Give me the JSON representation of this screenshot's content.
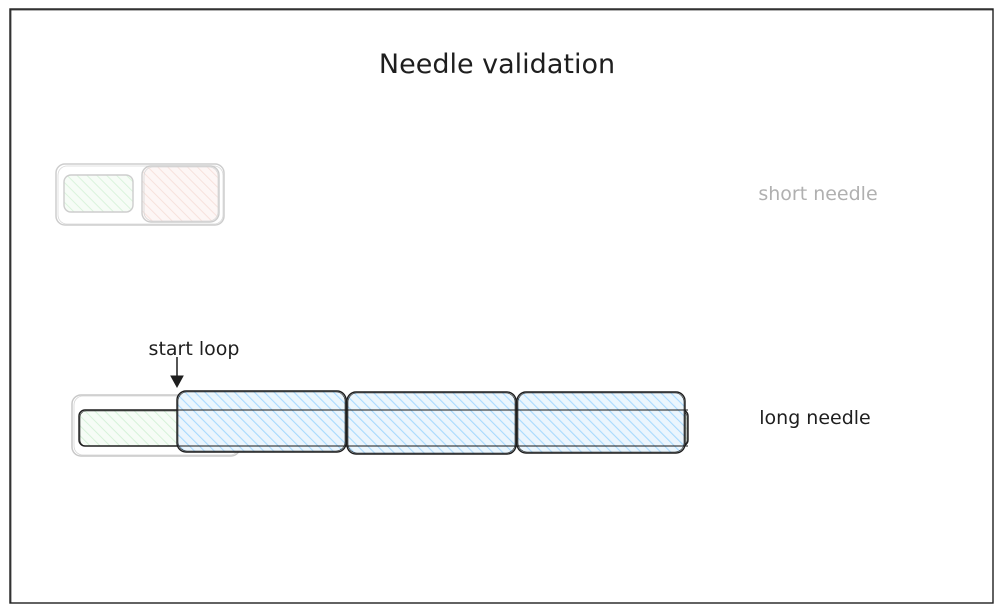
{
  "title": "Needle validation",
  "short_needle": {
    "label": "short needle",
    "label_color": "#b0b0b0"
  },
  "long_needle": {
    "label": "long needle",
    "label_color": "#1e1e1e",
    "annotation": "start loop"
  },
  "colors": {
    "stroke": "#1e1e1e",
    "faded_stroke": "#c8c8c8",
    "green_fill": "#b2f2bb",
    "red_fill": "#ffc9c9",
    "blue_fill": "#a5d8ff"
  }
}
